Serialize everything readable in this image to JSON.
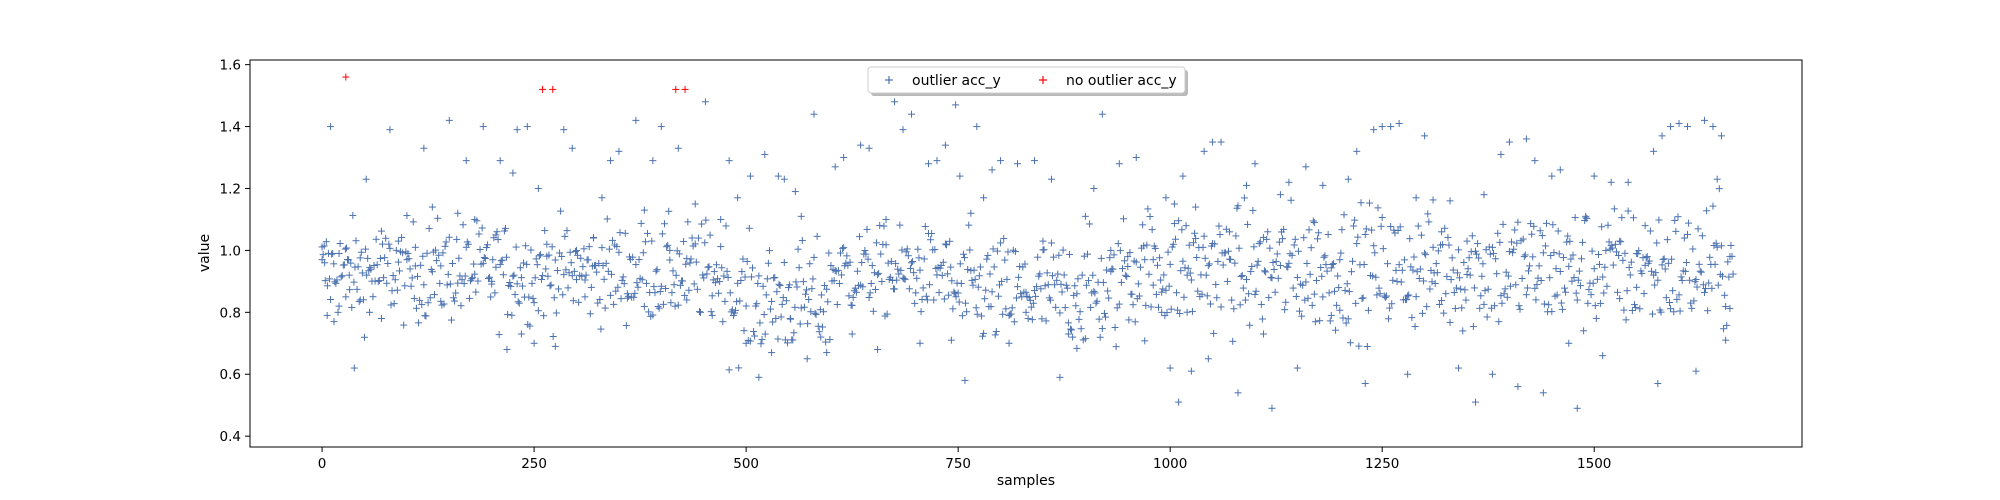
{
  "chart_data": {
    "type": "scatter",
    "title": "",
    "xlabel": "samples",
    "ylabel": "value",
    "xlim": [
      -85,
      1745
    ],
    "ylim": [
      0.365,
      1.615
    ],
    "x_ticks": [
      0,
      250,
      500,
      750,
      1000,
      1250,
      1500
    ],
    "y_ticks": [
      0.4,
      0.6,
      0.8,
      1.0,
      1.2,
      1.4,
      1.6
    ],
    "x_tick_labels": [
      "0",
      "250",
      "500",
      "750",
      "1000",
      "1250",
      "1500"
    ],
    "y_tick_labels": [
      "0.4",
      "0.6",
      "0.8",
      "1.0",
      "1.2",
      "1.4",
      "1.6"
    ],
    "grid": false,
    "legend_position": "top-center",
    "series": [
      {
        "name": "outlier acc_y",
        "marker": "+",
        "color": "#4c72b0",
        "points": [
          [
            0,
            0.97
          ],
          [
            3,
            0.96
          ],
          [
            6,
            0.79
          ],
          [
            10,
            1.4
          ],
          [
            14,
            0.77
          ],
          [
            20,
            0.99
          ],
          [
            28,
            0.85
          ],
          [
            32,
            0.92
          ],
          [
            38,
            0.62
          ],
          [
            45,
            0.84
          ],
          [
            52,
            1.23
          ],
          [
            56,
            0.8
          ],
          [
            70,
            0.78
          ],
          [
            80,
            1.39
          ],
          [
            90,
            1.03
          ],
          [
            100,
            0.97
          ],
          [
            110,
            1.01
          ],
          [
            120,
            1.33
          ],
          [
            130,
            1.14
          ],
          [
            140,
            0.95
          ],
          [
            150,
            1.42
          ],
          [
            160,
            1.12
          ],
          [
            170,
            1.29
          ],
          [
            180,
            1.1
          ],
          [
            190,
            1.4
          ],
          [
            200,
            0.9
          ],
          [
            205,
            1.05
          ],
          [
            210,
            1.29
          ],
          [
            218,
            0.68
          ],
          [
            225,
            1.25
          ],
          [
            230,
            1.39
          ],
          [
            235,
            0.73
          ],
          [
            242,
            1.4
          ],
          [
            250,
            0.7
          ],
          [
            255,
            1.2
          ],
          [
            265,
            1.02
          ],
          [
            275,
            0.69
          ],
          [
            285,
            1.39
          ],
          [
            295,
            1.33
          ],
          [
            300,
            1.0
          ],
          [
            310,
            0.85
          ],
          [
            320,
            1.04
          ],
          [
            330,
            1.17
          ],
          [
            340,
            1.29
          ],
          [
            350,
            1.32
          ],
          [
            360,
            0.86
          ],
          [
            370,
            1.42
          ],
          [
            380,
            1.13
          ],
          [
            390,
            1.29
          ],
          [
            400,
            1.4
          ],
          [
            410,
            1.0
          ],
          [
            420,
            1.33
          ],
          [
            430,
            0.84
          ],
          [
            440,
            1.15
          ],
          [
            452,
            1.48
          ],
          [
            460,
            0.79
          ],
          [
            470,
            1.1
          ],
          [
            480,
            1.29
          ],
          [
            490,
            1.17
          ],
          [
            500,
            0.7
          ],
          [
            505,
            1.24
          ],
          [
            515,
            0.59
          ],
          [
            522,
            1.31
          ],
          [
            530,
            0.67
          ],
          [
            538,
            1.24
          ],
          [
            545,
            1.23
          ],
          [
            552,
            0.78
          ],
          [
            558,
            1.19
          ],
          [
            565,
            1.11
          ],
          [
            572,
            0.65
          ],
          [
            580,
            1.44
          ],
          [
            588,
            0.72
          ],
          [
            595,
            0.67
          ],
          [
            605,
            1.27
          ],
          [
            615,
            1.3
          ],
          [
            625,
            0.73
          ],
          [
            635,
            1.34
          ],
          [
            645,
            1.33
          ],
          [
            655,
            0.68
          ],
          [
            665,
            1.1
          ],
          [
            675,
            1.48
          ],
          [
            685,
            1.39
          ],
          [
            695,
            1.44
          ],
          [
            705,
            0.7
          ],
          [
            715,
            1.28
          ],
          [
            725,
            1.29
          ],
          [
            735,
            1.34
          ],
          [
            742,
            0.71
          ],
          [
            747,
            1.47
          ],
          [
            752,
            1.24
          ],
          [
            758,
            0.58
          ],
          [
            765,
            1.12
          ],
          [
            772,
            1.4
          ],
          [
            780,
            1.17
          ],
          [
            790,
            1.26
          ],
          [
            800,
            1.29
          ],
          [
            810,
            0.7
          ],
          [
            820,
            1.28
          ],
          [
            830,
            0.8
          ],
          [
            840,
            1.29
          ],
          [
            850,
            1.03
          ],
          [
            860,
            1.23
          ],
          [
            870,
            0.59
          ],
          [
            880,
            0.73
          ],
          [
            890,
            0.86
          ],
          [
            900,
            1.11
          ],
          [
            910,
            1.2
          ],
          [
            920,
            1.44
          ],
          [
            930,
            1.0
          ],
          [
            940,
            1.28
          ],
          [
            950,
            0.98
          ],
          [
            960,
            1.3
          ],
          [
            970,
            0.97
          ],
          [
            980,
            0.97
          ],
          [
            990,
            0.8
          ],
          [
            995,
            1.17
          ],
          [
            1000,
            0.62
          ],
          [
            1005,
            1.15
          ],
          [
            1010,
            0.51
          ],
          [
            1015,
            1.24
          ],
          [
            1020,
            0.92
          ],
          [
            1025,
            0.61
          ],
          [
            1030,
            1.14
          ],
          [
            1040,
            1.32
          ],
          [
            1045,
            0.65
          ],
          [
            1050,
            1.35
          ],
          [
            1060,
            1.35
          ],
          [
            1070,
            1.06
          ],
          [
            1080,
            0.54
          ],
          [
            1090,
            1.21
          ],
          [
            1100,
            1.28
          ],
          [
            1110,
            0.73
          ],
          [
            1120,
            0.49
          ],
          [
            1130,
            1.18
          ],
          [
            1140,
            1.22
          ],
          [
            1150,
            0.62
          ],
          [
            1160,
            1.27
          ],
          [
            1170,
            1.09
          ],
          [
            1180,
            1.21
          ],
          [
            1190,
            0.79
          ],
          [
            1200,
            0.97
          ],
          [
            1210,
            1.23
          ],
          [
            1220,
            1.32
          ],
          [
            1230,
            0.57
          ],
          [
            1240,
            1.39
          ],
          [
            1250,
            1.4
          ],
          [
            1260,
            1.4
          ],
          [
            1270,
            1.41
          ],
          [
            1280,
            0.6
          ],
          [
            1290,
            1.17
          ],
          [
            1300,
            1.37
          ],
          [
            1310,
            1.01
          ],
          [
            1320,
            1.06
          ],
          [
            1330,
            1.16
          ],
          [
            1340,
            0.62
          ],
          [
            1350,
            1.03
          ],
          [
            1360,
            0.51
          ],
          [
            1370,
            1.18
          ],
          [
            1380,
            0.6
          ],
          [
            1390,
            1.31
          ],
          [
            1400,
            1.35
          ],
          [
            1410,
            0.56
          ],
          [
            1420,
            1.36
          ],
          [
            1430,
            1.29
          ],
          [
            1440,
            0.54
          ],
          [
            1450,
            1.24
          ],
          [
            1460,
            1.26
          ],
          [
            1470,
            0.7
          ],
          [
            1480,
            0.49
          ],
          [
            1490,
            1.11
          ],
          [
            1500,
            1.24
          ],
          [
            1510,
            0.66
          ],
          [
            1520,
            1.22
          ],
          [
            1530,
            1.03
          ],
          [
            1540,
            1.22
          ],
          [
            1550,
            0.99
          ],
          [
            1560,
            1.08
          ],
          [
            1570,
            1.32
          ],
          [
            1575,
            0.57
          ],
          [
            1580,
            1.37
          ],
          [
            1590,
            1.4
          ],
          [
            1600,
            1.41
          ],
          [
            1610,
            1.4
          ],
          [
            1620,
            0.61
          ],
          [
            1630,
            1.42
          ],
          [
            1640,
            1.4
          ],
          [
            1645,
            1.23
          ],
          [
            1650,
            1.37
          ],
          [
            1655,
            0.71
          ],
          [
            1660,
            0.98
          ]
        ]
      },
      {
        "name": "no outlier acc_y",
        "marker": "+",
        "color": "#ff0000",
        "points": [
          [
            28,
            1.56
          ],
          [
            260,
            1.52
          ],
          [
            272,
            1.52
          ],
          [
            417,
            1.52
          ],
          [
            428,
            1.52
          ]
        ]
      }
    ],
    "bands": [
      {
        "x_start": 0,
        "x_end": 480,
        "center": 0.93,
        "spread": 0.08
      },
      {
        "x_start": 480,
        "x_end": 600,
        "center": 0.84,
        "spread": 0.09
      },
      {
        "x_start": 600,
        "x_end": 740,
        "center": 0.93,
        "spread": 0.07
      },
      {
        "x_start": 740,
        "x_end": 940,
        "center": 0.86,
        "spread": 0.09
      },
      {
        "x_start": 940,
        "x_end": 1665,
        "center": 0.94,
        "spread": 0.1
      }
    ]
  }
}
